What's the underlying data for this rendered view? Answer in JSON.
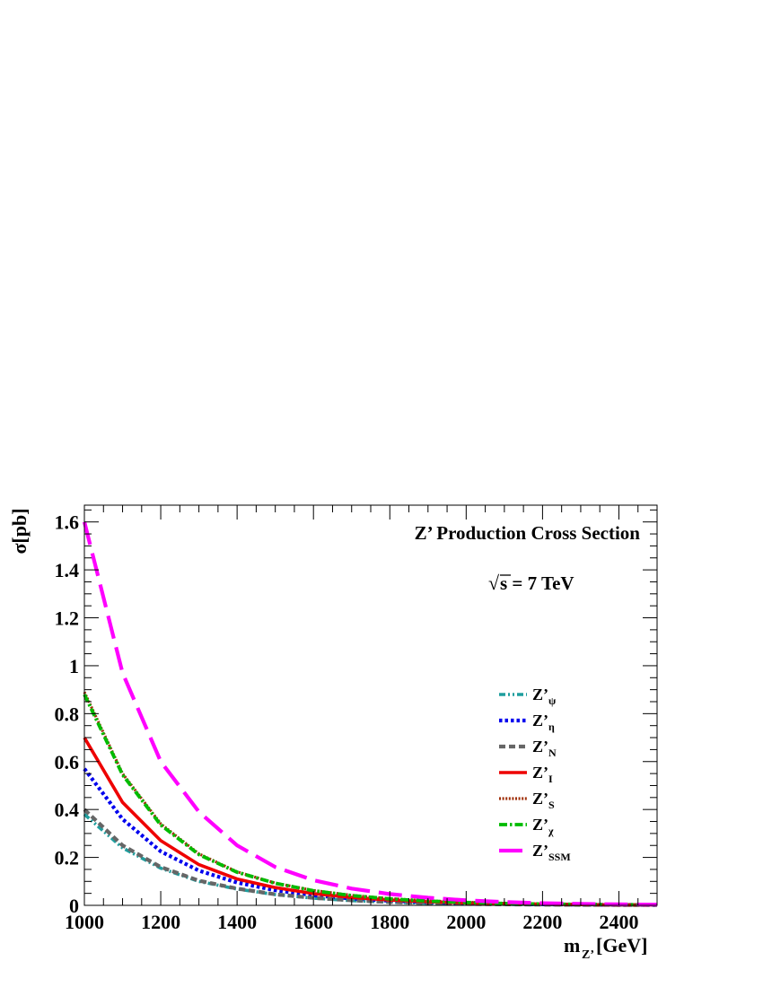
{
  "chart_data": {
    "type": "line",
    "title": "Z’ Production Cross Section",
    "annotation": {
      "sqrt_symbol": "√",
      "text": "s = 7 TeV"
    },
    "xlabel": {
      "main": "m",
      "sub": "Z’",
      "unit": "[GeV]"
    },
    "ylabel": "σ[pb]",
    "xlim": [
      1000,
      2500
    ],
    "ylim": [
      0,
      1.67
    ],
    "xticks": [
      1000,
      1200,
      1400,
      1600,
      1800,
      2000,
      2200,
      2400
    ],
    "yticks": [
      0,
      0.2,
      0.4,
      0.6,
      0.8,
      1,
      1.2,
      1.4,
      1.6
    ],
    "ytick_labels": [
      "0",
      "0.2",
      "0.4",
      "0.6",
      "0.8",
      "1",
      "1.2",
      "1.4",
      "1.6"
    ],
    "grid": false,
    "legend_position": "right-middle",
    "x": [
      1000,
      1100,
      1200,
      1300,
      1400,
      1500,
      1600,
      1700,
      1800,
      1900,
      2000,
      2100,
      2200,
      2300,
      2400,
      2500
    ],
    "series": [
      {
        "name": "Z’",
        "sub": "ψ",
        "color": "#1f9e9e",
        "style": "dashdot-fine",
        "values": [
          0.38,
          0.24,
          0.155,
          0.1,
          0.068,
          0.045,
          0.03,
          0.02,
          0.013,
          0.009,
          0.006,
          0.004,
          0.003,
          0.002,
          0.0015,
          0.001
        ]
      },
      {
        "name": "Z’",
        "sub": "η",
        "color": "#0000ee",
        "style": "dotted",
        "values": [
          0.57,
          0.36,
          0.225,
          0.145,
          0.095,
          0.063,
          0.042,
          0.028,
          0.019,
          0.013,
          0.009,
          0.006,
          0.004,
          0.003,
          0.002,
          0.0015
        ]
      },
      {
        "name": "Z’",
        "sub": "N",
        "color": "#666666",
        "style": "dashed",
        "values": [
          0.4,
          0.25,
          0.16,
          0.103,
          0.07,
          0.046,
          0.031,
          0.021,
          0.014,
          0.009,
          0.006,
          0.004,
          0.003,
          0.002,
          0.0015,
          0.001
        ]
      },
      {
        "name": "Z’",
        "sub": "I",
        "color": "#ee0000",
        "style": "solid",
        "values": [
          0.7,
          0.43,
          0.27,
          0.17,
          0.11,
          0.074,
          0.049,
          0.033,
          0.022,
          0.015,
          0.01,
          0.007,
          0.005,
          0.003,
          0.002,
          0.0015
        ]
      },
      {
        "name": "Z’",
        "sub": "S",
        "color": "#a0300a",
        "style": "dotted-fine",
        "values": [
          0.89,
          0.55,
          0.34,
          0.215,
          0.14,
          0.093,
          0.062,
          0.042,
          0.028,
          0.019,
          0.013,
          0.009,
          0.006,
          0.004,
          0.003,
          0.002
        ]
      },
      {
        "name": "Z’",
        "sub": "χ",
        "color": "#00bb00",
        "style": "dashdot",
        "values": [
          0.88,
          0.545,
          0.335,
          0.212,
          0.138,
          0.092,
          0.061,
          0.041,
          0.027,
          0.018,
          0.012,
          0.008,
          0.0055,
          0.004,
          0.003,
          0.002
        ]
      },
      {
        "name": "Z’",
        "sub": "SSM",
        "color": "#ff00ff",
        "style": "longdash",
        "values": [
          1.6,
          0.97,
          0.6,
          0.39,
          0.25,
          0.16,
          0.105,
          0.07,
          0.047,
          0.032,
          0.021,
          0.014,
          0.009,
          0.006,
          0.004,
          0.003
        ]
      }
    ]
  }
}
